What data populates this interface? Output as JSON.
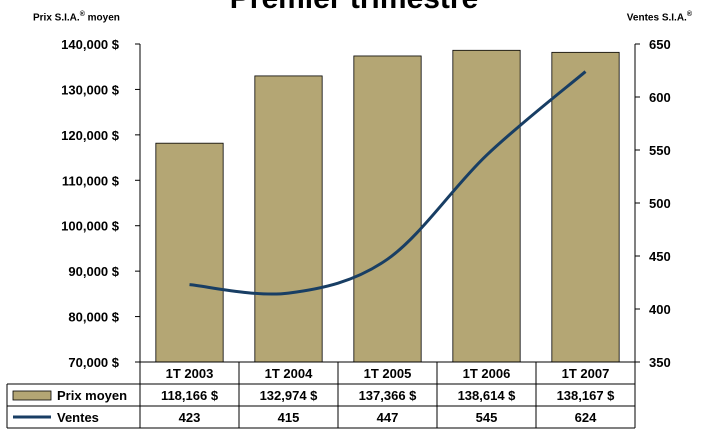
{
  "chart_data": {
    "type": "bar",
    "title": "Premier trimestre",
    "y_left_label": "Prix S.I.A.® moyen",
    "y_right_label": "Ventes S.I.A.®",
    "categories": [
      "1T 2003",
      "1T 2004",
      "1T 2005",
      "1T 2006",
      "1T 2007"
    ],
    "y_left_range": [
      70000,
      140000
    ],
    "y_left_ticks": [
      "70,000 $",
      "80,000 $",
      "90,000 $",
      "100,000 $",
      "110,000 $",
      "120,000 $",
      "130,000 $",
      "140,000 $"
    ],
    "y_right_range": [
      350,
      650
    ],
    "y_right_ticks": [
      "350",
      "400",
      "450",
      "500",
      "550",
      "600",
      "650"
    ],
    "series": [
      {
        "name": "Prix moyen",
        "kind": "bar",
        "axis": "left",
        "color": "#b4a674",
        "values": [
          118166,
          132974,
          137366,
          138614,
          138167
        ],
        "labels": [
          "118,166 $",
          "132,974 $",
          "137,366 $",
          "138,614 $",
          "138,167 $"
        ]
      },
      {
        "name": "Ventes",
        "kind": "line",
        "axis": "right",
        "color": "#183e64",
        "values": [
          423,
          415,
          447,
          545,
          624
        ],
        "labels": [
          "423",
          "415",
          "447",
          "545",
          "624"
        ]
      }
    ],
    "grid": false,
    "legend": "data-table below chart"
  }
}
